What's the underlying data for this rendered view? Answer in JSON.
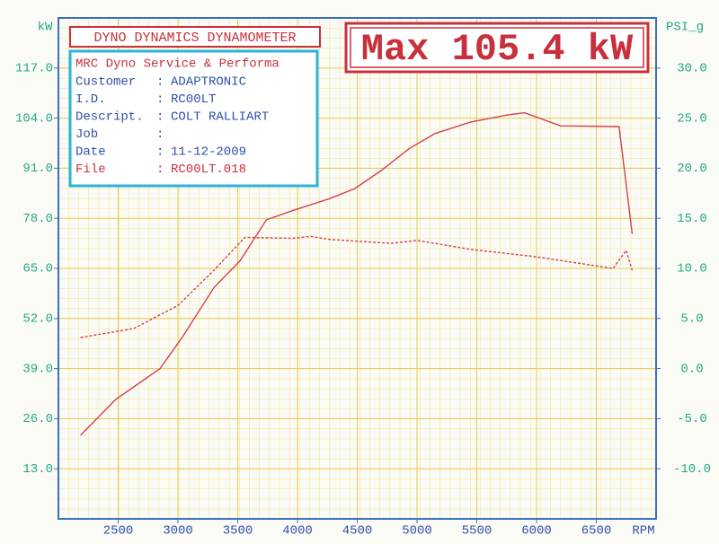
{
  "chart_data": {
    "type": "line",
    "title": "DYNO DYNAMICS DYNAMOMETER",
    "annotation": "Max 105.4 kW",
    "info": {
      "heading": "MRC Dyno Service & Performa",
      "rows": [
        [
          "Customer",
          ":",
          "ADAPTRONIC"
        ],
        [
          "I.D.",
          ":",
          "RC00LT"
        ],
        [
          "Descript.",
          ":",
          "COLT RALLIART"
        ],
        [
          "Job",
          ":"
        ],
        [
          "Date",
          ":",
          "11-12-2009"
        ],
        [
          "File",
          ":",
          "RC00LT.018"
        ]
      ]
    },
    "y_label": "kW",
    "y2_label": "PSI_g",
    "x_label": "RPM",
    "xlim": [
      2000,
      7000
    ],
    "xticks": [
      2500,
      3000,
      3500,
      4000,
      4500,
      5000,
      5500,
      6000,
      6500
    ],
    "ylim": [
      0,
      130
    ],
    "yticks": [
      {
        "value": 13,
        "label": "13.0"
      },
      {
        "value": 26,
        "label": "26.0"
      },
      {
        "value": 39,
        "label": "39.0"
      },
      {
        "value": 52,
        "label": "52.0"
      },
      {
        "value": 65,
        "label": "65.0"
      },
      {
        "value": 78,
        "label": "78.0"
      },
      {
        "value": 91,
        "label": "91.0"
      },
      {
        "value": 104,
        "label": "104.0"
      },
      {
        "value": 117,
        "label": "117.0"
      }
    ],
    "y2lim": [
      -15,
      35
    ],
    "y2ticks": [
      {
        "value": -10,
        "label": "-10.0"
      },
      {
        "value": -5,
        "label": "-5.0"
      },
      {
        "value": 0,
        "label": "0.0"
      },
      {
        "value": 5,
        "label": "5.0"
      },
      {
        "value": 10,
        "label": "10.0"
      },
      {
        "value": 15,
        "label": "15.0"
      },
      {
        "value": 20,
        "label": "20.0"
      },
      {
        "value": 25,
        "label": "25.0"
      },
      {
        "value": 30,
        "label": "30.0"
      }
    ],
    "grid": true,
    "series": [
      {
        "color": "#d2404e",
        "style": "solid",
        "x": [
          2185,
          2480,
          2850,
          3040,
          3300,
          3520,
          3740,
          3960,
          4260,
          4480,
          4700,
          4930,
          5150,
          5450,
          5750,
          5900,
          6200,
          6690,
          6800
        ],
        "values": [
          21.7,
          31,
          39,
          47.3,
          60,
          67,
          77.6,
          80,
          83,
          85.7,
          90.4,
          96,
          100,
          103,
          104.8,
          105.4,
          102,
          101.8,
          74
        ]
      },
      {
        "color": "#d2404e",
        "style": "dashed",
        "axis": "y2",
        "x": [
          2185,
          2630,
          3000,
          3300,
          3560,
          3960,
          4110,
          4260,
          4780,
          5000,
          5450,
          5970,
          6640,
          6750,
          6800
        ],
        "values": [
          3.1,
          4,
          6.3,
          9.8,
          13.1,
          13,
          13.2,
          12.9,
          12.5,
          12.8,
          11.9,
          11.2,
          10,
          11.8,
          9.8
        ]
      }
    ]
  }
}
